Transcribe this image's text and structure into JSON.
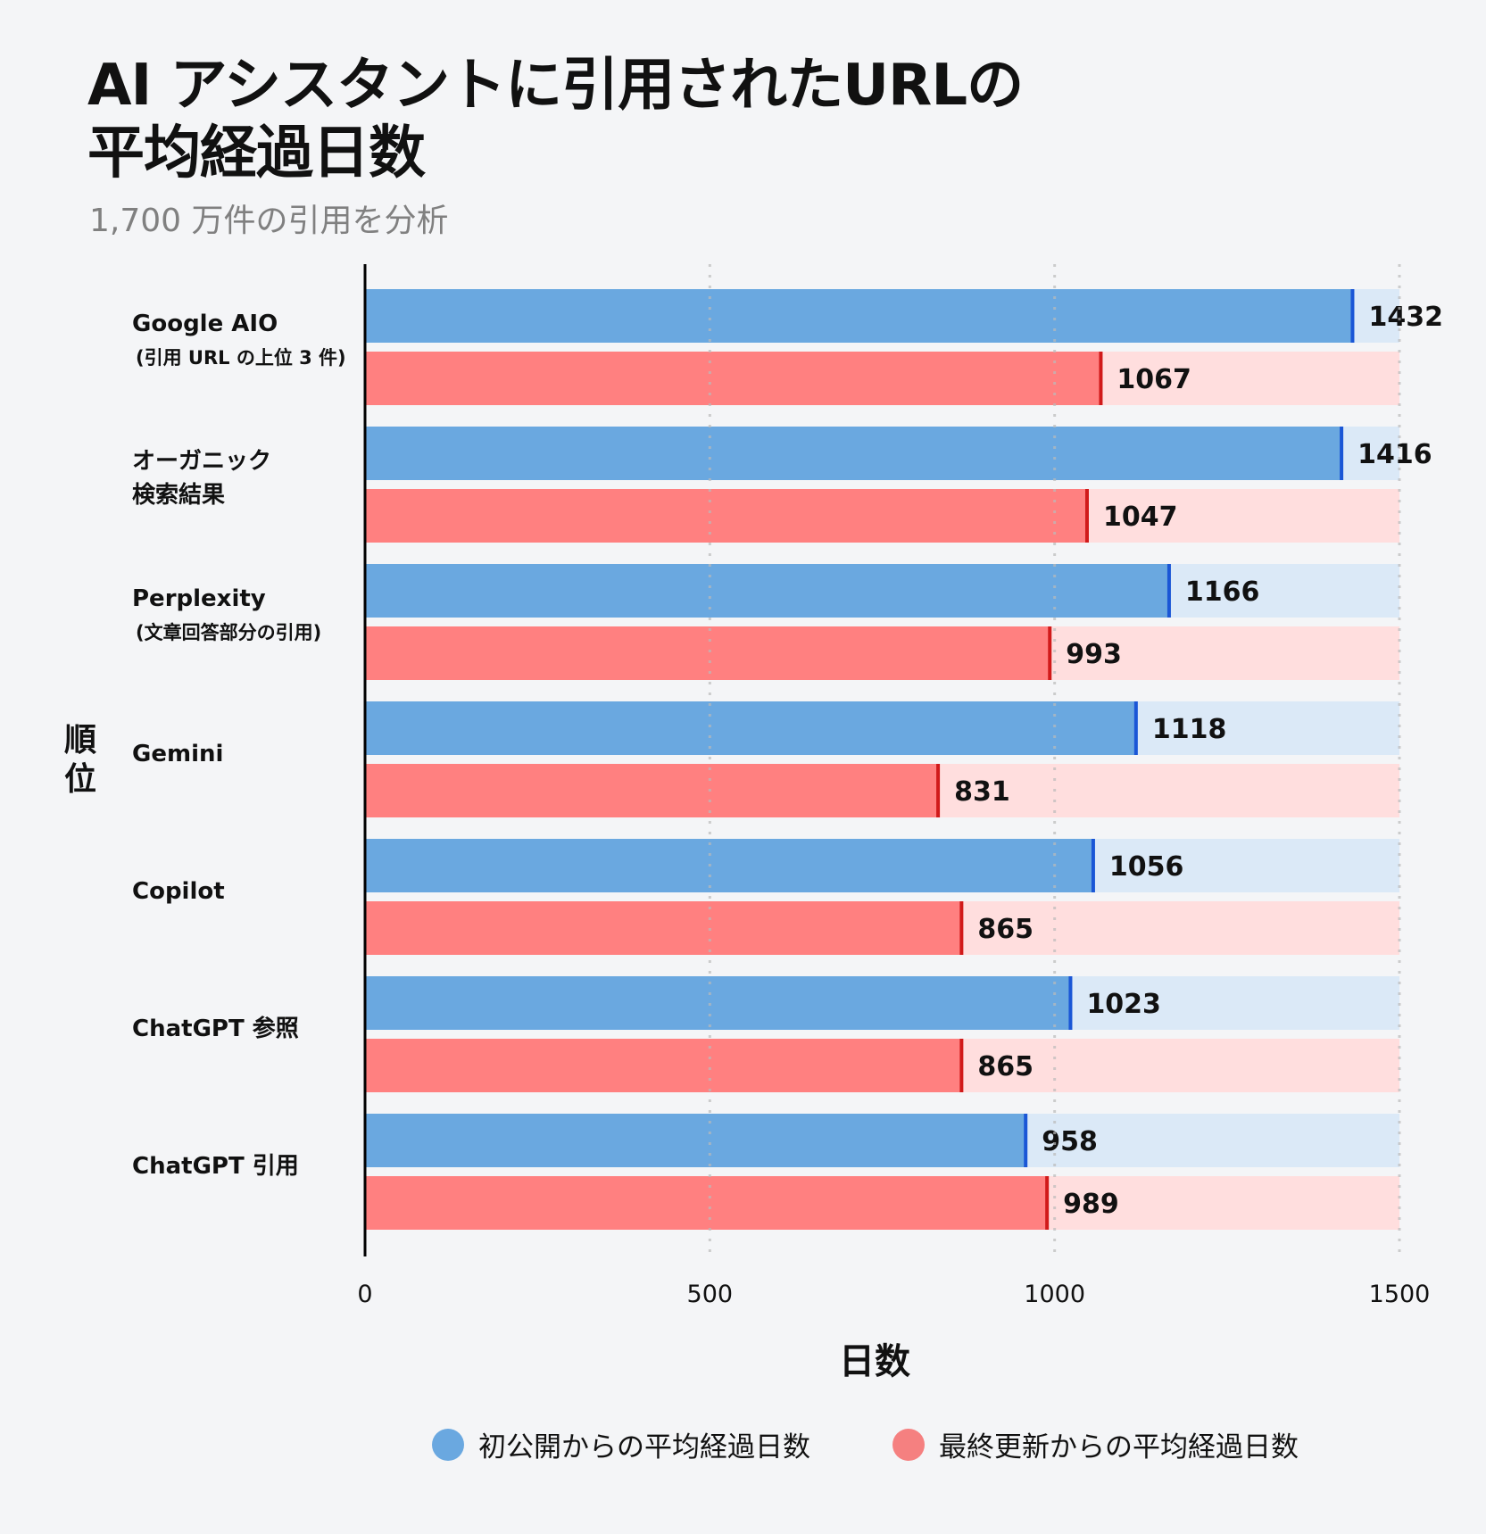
{
  "chart_data": {
    "type": "bar",
    "orientation": "horizontal",
    "title": "AI アシスタントに引用されたURLの\n平均経過日数",
    "subtitle": "1,700 万件の引用を分析",
    "xlabel": "日数",
    "ylabel": "順位",
    "xlim": [
      0,
      1500
    ],
    "xticks": [
      0,
      500,
      1000,
      1500
    ],
    "grid": "vertical-dotted",
    "legend_placement": "bottom",
    "categories": [
      {
        "name": "Google AIO",
        "sub": "(引用 URL の上位 3 件)"
      },
      {
        "name": "オーガニック",
        "sub": "検索結果"
      },
      {
        "name": "Perplexity",
        "sub": "(文章回答部分の引用)"
      },
      {
        "name": "Gemini",
        "sub": ""
      },
      {
        "name": "Copilot",
        "sub": ""
      },
      {
        "name": "ChatGPT 参照",
        "sub": ""
      },
      {
        "name": "ChatGPT 引用",
        "sub": ""
      }
    ],
    "series": [
      {
        "name": "初公開からの平均経過日数",
        "color": "#6aa8e0",
        "track_color": "#dbe9f7",
        "marker_color": "#1a56d6",
        "values": [
          1432,
          1416,
          1166,
          1118,
          1056,
          1023,
          958
        ]
      },
      {
        "name": "最終更新からの平均経過日数",
        "color": "#ff8080",
        "track_color": "#ffdede",
        "marker_color": "#d11a1a",
        "values": [
          1067,
          1047,
          993,
          831,
          865,
          865,
          989
        ]
      }
    ]
  }
}
